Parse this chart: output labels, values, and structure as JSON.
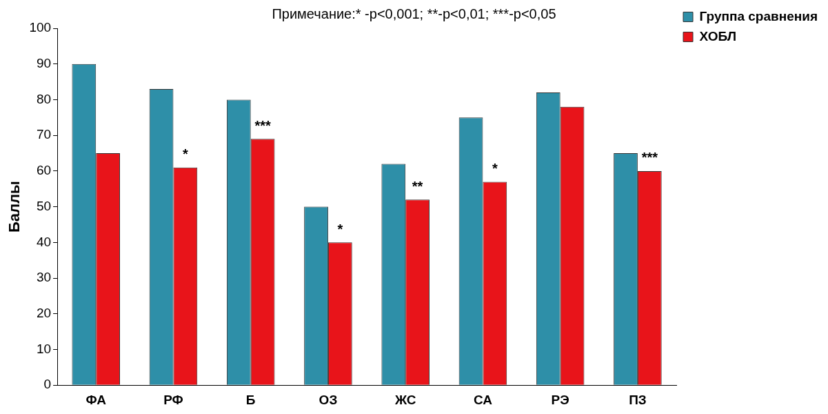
{
  "chart_data": {
    "type": "bar",
    "title": "Примечание:* -p<0,001; **-p<0,01; ***-p<0,05",
    "ylabel": "Баллы",
    "categories": [
      "ФА",
      "РФ",
      "Б",
      "ОЗ",
      "ЖС",
      "СА",
      "РЭ",
      "ПЗ"
    ],
    "series": [
      {
        "name": "Группа сравнения",
        "color": "#2e8fa8",
        "values": [
          90,
          83,
          80,
          50,
          62,
          75,
          82,
          65
        ]
      },
      {
        "name": "ХОБЛ",
        "color": "#e8141a",
        "values": [
          65,
          61,
          69,
          40,
          52,
          57,
          78,
          60
        ]
      }
    ],
    "ylim": [
      0,
      100
    ],
    "yticks": [
      0,
      10,
      20,
      30,
      40,
      50,
      60,
      70,
      80,
      90,
      100
    ],
    "grid": false,
    "legend": "top right",
    "annotations": [
      {
        "text": "*",
        "x": "РФ",
        "y": 61
      },
      {
        "text": "***",
        "x": "Б",
        "y": 69
      },
      {
        "text": "*",
        "x": "ОЗ",
        "y": 40
      },
      {
        "text": "**",
        "x": "ЖС",
        "y": 52
      },
      {
        "text": "*",
        "x": "СА",
        "y": 57
      },
      {
        "text": "***",
        "x": "ПЗ",
        "y": 60
      }
    ]
  }
}
